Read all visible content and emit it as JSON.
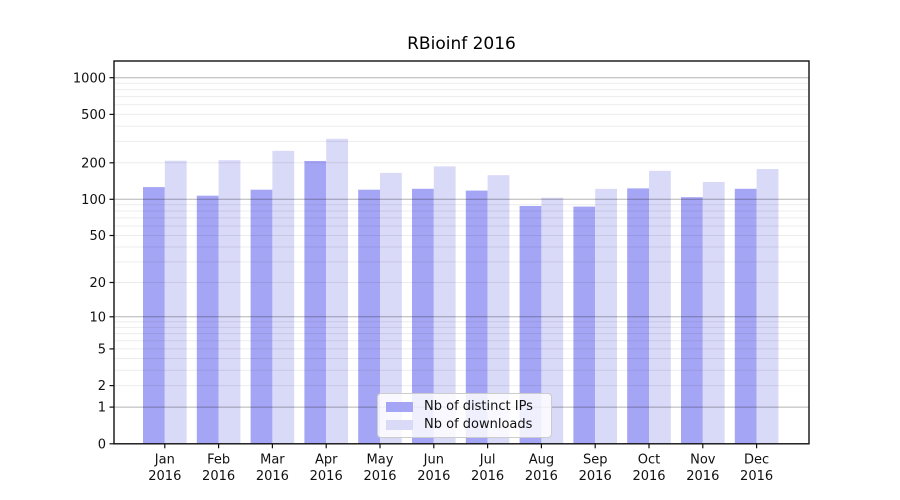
{
  "chart_data": {
    "type": "bar",
    "title": "RBioinf 2016",
    "categories": [
      "Jan",
      "Feb",
      "Mar",
      "Apr",
      "May",
      "Jun",
      "Jul",
      "Aug",
      "Sep",
      "Oct",
      "Nov",
      "Dec"
    ],
    "category_year": "2016",
    "series": [
      {
        "name": "Nb of distinct IPs",
        "color": "#a5a5f5",
        "values": [
          126,
          107,
          120,
          207,
          120,
          122,
          118,
          88,
          87,
          123,
          104,
          122
        ]
      },
      {
        "name": "Nb of downloads",
        "color": "#d9d9f8",
        "values": [
          208,
          210,
          251,
          315,
          165,
          187,
          158,
          103,
          122,
          172,
          139,
          178
        ]
      }
    ],
    "xlabel": "",
    "ylabel": "",
    "yscale": "log10(value+1)",
    "yticks": [
      0,
      1,
      2,
      5,
      10,
      20,
      50,
      100,
      200,
      500,
      1000
    ],
    "ylim": [
      0,
      1380
    ],
    "grid": "horizontal; dark major lines at 1,10,100,1000; faint minor lines at 2-9 per decade",
    "legend_position": "lower center"
  }
}
